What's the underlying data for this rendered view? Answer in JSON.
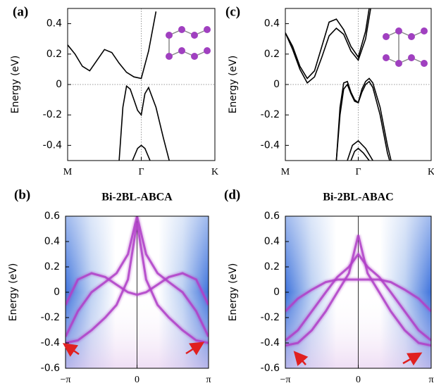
{
  "chart_data": [
    {
      "type": "line",
      "label": "(a)",
      "ylabel": "Energy (eV)",
      "xlim": [
        0,
        2
      ],
      "ylim": [
        -0.5,
        0.5
      ],
      "xticks": [
        {
          "value": 0,
          "label": "M"
        },
        {
          "value": 1,
          "label": "Γ"
        },
        {
          "value": 2,
          "label": "K"
        }
      ],
      "yticks": [
        0.4,
        0.2,
        0,
        -0.2,
        -0.4
      ],
      "series": [
        {
          "color": "#000000",
          "x": [
            0,
            0.1,
            0.2,
            0.3,
            0.4,
            0.5,
            0.6,
            0.7,
            0.8,
            0.9,
            1.0,
            1.1,
            1.2
          ],
          "values": [
            0.26,
            0.2,
            0.12,
            0.09,
            0.16,
            0.23,
            0.21,
            0.14,
            0.08,
            0.05,
            0.04,
            0.22,
            0.48
          ]
        },
        {
          "color": "#000000",
          "x": [
            0.7,
            0.75,
            0.8,
            0.85,
            0.9,
            0.95,
            1.0,
            1.05,
            1.1,
            1.2,
            1.3,
            1.38
          ],
          "values": [
            -0.5,
            -0.15,
            -0.01,
            -0.03,
            -0.1,
            -0.17,
            -0.2,
            -0.06,
            -0.02,
            -0.15,
            -0.35,
            -0.5
          ]
        },
        {
          "color": "#000000",
          "x": [
            0.88,
            0.95,
            1.0,
            1.05,
            1.12
          ],
          "values": [
            -0.5,
            -0.42,
            -0.4,
            -0.42,
            -0.5
          ]
        }
      ]
    },
    {
      "type": "line",
      "label": "(c)",
      "ylabel": "Energy (eV)",
      "xlim": [
        0,
        2
      ],
      "ylim": [
        -0.5,
        0.5
      ],
      "xticks": [
        {
          "value": 0,
          "label": "M"
        },
        {
          "value": 1,
          "label": "Γ"
        },
        {
          "value": 2,
          "label": "K"
        }
      ],
      "yticks": [
        0.4,
        0.2,
        0,
        -0.2,
        -0.4
      ],
      "series": [
        {
          "color": "#000000",
          "x": [
            0,
            0.1,
            0.2,
            0.3,
            0.4,
            0.5,
            0.6,
            0.7,
            0.8,
            0.9,
            1.0,
            1.1,
            1.15
          ],
          "values": [
            0.34,
            0.25,
            0.12,
            0.04,
            0.09,
            0.25,
            0.41,
            0.43,
            0.36,
            0.25,
            0.18,
            0.35,
            0.5
          ]
        },
        {
          "color": "#000000",
          "x": [
            0,
            0.1,
            0.2,
            0.3,
            0.4,
            0.5,
            0.6,
            0.7,
            0.8,
            0.9,
            1.0,
            1.1,
            1.17
          ],
          "values": [
            0.34,
            0.23,
            0.1,
            0.01,
            0.05,
            0.18,
            0.32,
            0.37,
            0.33,
            0.22,
            0.16,
            0.3,
            0.5
          ]
        },
        {
          "color": "#000000",
          "x": [
            0.7,
            0.75,
            0.8,
            0.85,
            0.9,
            0.95,
            1.0,
            1.05,
            1.1,
            1.15,
            1.2,
            1.3,
            1.4,
            1.45
          ],
          "values": [
            -0.5,
            -0.15,
            0.01,
            0.02,
            -0.05,
            -0.1,
            -0.12,
            -0.03,
            0.02,
            0.04,
            0.01,
            -0.15,
            -0.4,
            -0.5
          ]
        },
        {
          "color": "#000000",
          "x": [
            0.7,
            0.75,
            0.8,
            0.85,
            0.9,
            0.95,
            1.0,
            1.05,
            1.1,
            1.15,
            1.2,
            1.3,
            1.4,
            1.43
          ],
          "values": [
            -0.5,
            -0.2,
            -0.03,
            0.0,
            -0.06,
            -0.11,
            -0.12,
            -0.05,
            0.0,
            0.02,
            -0.02,
            -0.2,
            -0.45,
            -0.5
          ]
        },
        {
          "color": "#000000",
          "x": [
            0.85,
            0.92,
            1.0,
            1.1,
            1.2
          ],
          "values": [
            -0.5,
            -0.4,
            -0.37,
            -0.42,
            -0.5
          ]
        },
        {
          "color": "#000000",
          "x": [
            0.9,
            0.95,
            1.0,
            1.07,
            1.15
          ],
          "values": [
            -0.5,
            -0.44,
            -0.42,
            -0.45,
            -0.5
          ]
        }
      ]
    },
    {
      "type": "spectral",
      "label": "(b)",
      "title": "Bi-2BL-ABCA",
      "ylabel": "Energy (eV)",
      "xlim": [
        -3.14159,
        3.14159
      ],
      "ylim": [
        -0.6,
        0.6
      ],
      "xticks": [
        {
          "value": -3.14159,
          "label": "−π"
        },
        0,
        {
          "value": 3.14159,
          "label": "π"
        }
      ],
      "yticks": [
        0.6,
        0.4,
        0.2,
        0,
        -0.2,
        -0.4,
        -0.6
      ],
      "series": [
        {
          "color": "#b040c8",
          "x": [
            -3.14,
            -2.6,
            -2,
            -1.4,
            -0.9,
            -0.4,
            0,
            0.4,
            0.9,
            1.4,
            2,
            2.6,
            3.14
          ],
          "values": [
            -0.1,
            0.1,
            0.15,
            0.12,
            0.06,
            0.0,
            -0.02,
            0.0,
            0.06,
            0.12,
            0.15,
            0.1,
            -0.1
          ]
        },
        {
          "color": "#b040c8",
          "x": [
            -3.14,
            -2.6,
            -2,
            -1.4,
            -0.9,
            -0.4,
            0,
            0.4,
            0.9,
            1.4,
            2,
            2.6,
            3.14
          ],
          "values": [
            -0.35,
            -0.15,
            0.0,
            0.08,
            0.15,
            0.3,
            0.6,
            0.3,
            0.15,
            0.08,
            0.0,
            -0.15,
            -0.35
          ]
        },
        {
          "color": "#b040c8",
          "x": [
            -3.14,
            -2.6,
            -2,
            -1.4,
            -0.9,
            -0.4,
            0,
            0.4,
            0.9,
            1.4,
            2,
            2.6,
            3.14
          ],
          "values": [
            -0.4,
            -0.38,
            -0.3,
            -0.2,
            -0.1,
            0.1,
            0.55,
            0.1,
            -0.1,
            -0.2,
            -0.3,
            -0.38,
            -0.4
          ]
        }
      ]
    },
    {
      "type": "spectral",
      "label": "(d)",
      "title": "Bi-2BL-ABAC",
      "ylabel": "Energy (eV)",
      "xlim": [
        -3.14159,
        3.14159
      ],
      "ylim": [
        -0.6,
        0.6
      ],
      "xticks": [
        {
          "value": -3.14159,
          "label": "−π"
        },
        0,
        {
          "value": 3.14159,
          "label": "π"
        }
      ],
      "yticks": [
        0.6,
        0.4,
        0.2,
        0,
        -0.2,
        -0.4,
        -0.6
      ],
      "series": [
        {
          "color": "#b040c8",
          "x": [
            -3.14,
            -2.6,
            -2,
            -1.4,
            -0.9,
            -0.4,
            0,
            0.4,
            0.9,
            1.4,
            2,
            2.6,
            3.14
          ],
          "values": [
            -0.15,
            -0.05,
            0.02,
            0.08,
            0.1,
            0.1,
            0.1,
            0.1,
            0.1,
            0.08,
            0.02,
            -0.05,
            -0.15
          ]
        },
        {
          "color": "#b040c8",
          "x": [
            -3.14,
            -2.6,
            -2,
            -1.4,
            -0.9,
            -0.4,
            0,
            0.4,
            0.9,
            1.4,
            2,
            2.6,
            3.14
          ],
          "values": [
            -0.38,
            -0.3,
            -0.15,
            0.0,
            0.12,
            0.2,
            0.3,
            0.2,
            0.12,
            0.0,
            -0.15,
            -0.3,
            -0.38
          ]
        },
        {
          "color": "#b040c8",
          "x": [
            -3.14,
            -2.6,
            -2,
            -1.4,
            -0.9,
            -0.4,
            0,
            0.4,
            0.9,
            1.4,
            2,
            2.6,
            3.14
          ],
          "values": [
            -0.42,
            -0.4,
            -0.3,
            -0.15,
            0.0,
            0.15,
            0.45,
            0.15,
            0.0,
            -0.15,
            -0.3,
            -0.4,
            -0.42
          ]
        }
      ]
    }
  ]
}
